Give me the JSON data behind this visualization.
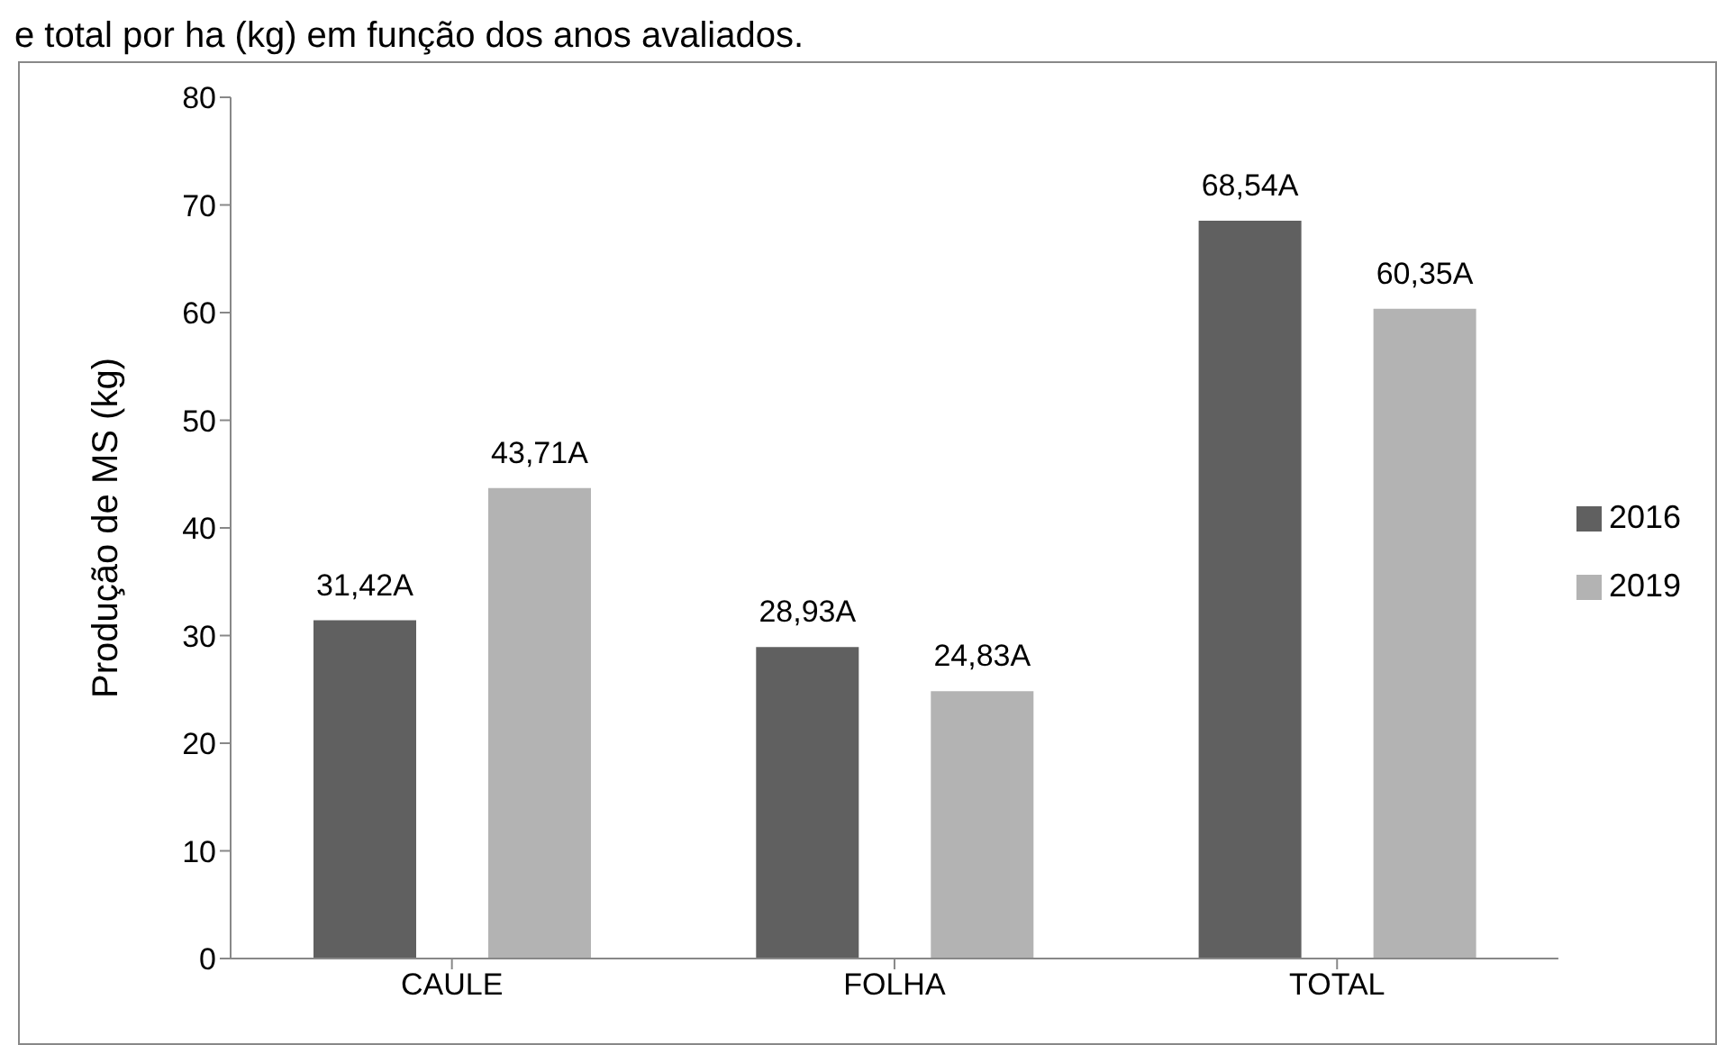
{
  "chart_data": {
    "type": "bar",
    "title": "e total por ha (kg) em função dos anos avaliados.",
    "ylabel": "Produção de MS (kg)",
    "categories": [
      "CAULE",
      "FOLHA",
      "TOTAL"
    ],
    "series": [
      {
        "name": "2016",
        "color": "#606060",
        "values": [
          31.42,
          28.93,
          68.54
        ],
        "value_labels": [
          "31,42A",
          "28,93A",
          "68,54A"
        ]
      },
      {
        "name": "2019",
        "color": "#b3b3b3",
        "values": [
          43.71,
          24.83,
          60.35
        ],
        "value_labels": [
          "43,71A",
          "24,83A",
          "60,35A"
        ]
      }
    ],
    "ylim": [
      0,
      80
    ],
    "yticks": [
      0,
      10,
      20,
      30,
      40,
      50,
      60,
      70,
      80
    ],
    "grid": false,
    "legend": "right"
  }
}
